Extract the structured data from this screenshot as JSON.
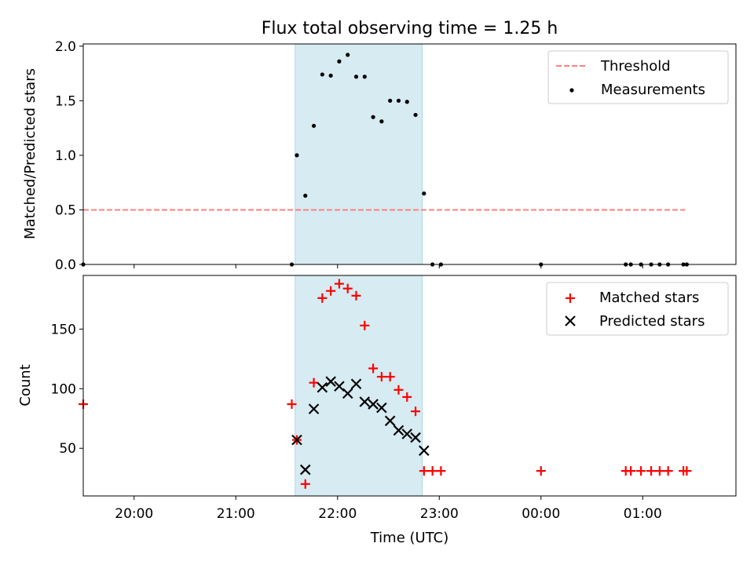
{
  "chart_data": [
    {
      "type": "scatter",
      "title": "Flux total observing time = 1.25 h",
      "ylabel": "Matched/Predicted stars",
      "xlabel": "",
      "xlim": [
        "19:30",
        "01:55"
      ],
      "ylim": [
        0,
        2.02
      ],
      "y_ticks": [
        0.0,
        0.5,
        1.0,
        1.5,
        2.0
      ],
      "y_tick_labels": [
        "0.0",
        "0.5",
        "1.0",
        "1.5",
        "2.0"
      ],
      "grid": false,
      "legend_position": "upper right",
      "shaded_interval": {
        "start": "21:35",
        "end": "22:50",
        "color": "#add8e6"
      },
      "threshold": {
        "name": "Threshold",
        "value": 0.5,
        "x_start": "19:30",
        "x_end": "01:25",
        "color": "#ff8080"
      },
      "series": [
        {
          "name": "Measurements",
          "color": "#000000",
          "points": [
            [
              "19:30",
              0.0
            ],
            [
              "21:33",
              0.0
            ],
            [
              "21:36",
              1.0
            ],
            [
              "21:41",
              0.63
            ],
            [
              "21:46",
              1.27
            ],
            [
              "21:51",
              1.74
            ],
            [
              "21:56",
              1.73
            ],
            [
              "22:01",
              1.86
            ],
            [
              "22:06",
              1.92
            ],
            [
              "22:11",
              1.72
            ],
            [
              "22:16",
              1.72
            ],
            [
              "22:21",
              1.35
            ],
            [
              "22:26",
              1.31
            ],
            [
              "22:31",
              1.5
            ],
            [
              "22:36",
              1.5
            ],
            [
              "22:41",
              1.49
            ],
            [
              "22:46",
              1.37
            ],
            [
              "22:51",
              0.65
            ],
            [
              "22:56",
              0.0
            ],
            [
              "23:01",
              0.0
            ],
            [
              "00:00",
              0.0
            ],
            [
              "00:50",
              0.0
            ],
            [
              "00:53",
              0.0
            ],
            [
              "00:59",
              0.0
            ],
            [
              "01:05",
              0.0
            ],
            [
              "01:10",
              0.0
            ],
            [
              "01:15",
              0.0
            ],
            [
              "01:24",
              0.0
            ],
            [
              "01:26",
              0.0
            ]
          ]
        }
      ]
    },
    {
      "type": "scatter",
      "title": "",
      "ylabel": "Count",
      "xlabel": "Time (UTC)",
      "xlim": [
        "19:30",
        "01:55"
      ],
      "ylim": [
        10,
        195
      ],
      "y_ticks": [
        50,
        100,
        150
      ],
      "y_tick_labels": [
        "50",
        "100",
        "150"
      ],
      "x_ticks": [
        "20:00",
        "21:00",
        "22:00",
        "23:00",
        "00:00",
        "01:00"
      ],
      "x_tick_labels": [
        "20:00",
        "21:00",
        "22:00",
        "23:00",
        "00:00",
        "01:00"
      ],
      "grid": false,
      "legend_position": "upper right",
      "shaded_interval": {
        "start": "21:35",
        "end": "22:50",
        "color": "#add8e6"
      },
      "series": [
        {
          "name": "Matched stars",
          "color": "#ff0000",
          "marker": "plus",
          "points": [
            [
              "19:30",
              87
            ],
            [
              "21:33",
              87
            ],
            [
              "21:36",
              57
            ],
            [
              "21:41",
              20
            ],
            [
              "21:46",
              105
            ],
            [
              "21:51",
              176
            ],
            [
              "21:56",
              182
            ],
            [
              "22:01",
              188
            ],
            [
              "22:06",
              184
            ],
            [
              "22:11",
              178
            ],
            [
              "22:16",
              153
            ],
            [
              "22:21",
              117
            ],
            [
              "22:26",
              110
            ],
            [
              "22:31",
              110
            ],
            [
              "22:36",
              99
            ],
            [
              "22:41",
              93
            ],
            [
              "22:46",
              81
            ],
            [
              "22:51",
              31
            ],
            [
              "22:56",
              31
            ],
            [
              "23:01",
              31
            ],
            [
              "00:00",
              31
            ],
            [
              "00:50",
              31
            ],
            [
              "00:53",
              31
            ],
            [
              "00:59",
              31
            ],
            [
              "01:05",
              31
            ],
            [
              "01:10",
              31
            ],
            [
              "01:15",
              31
            ],
            [
              "01:24",
              31
            ],
            [
              "01:26",
              31
            ]
          ]
        },
        {
          "name": "Predicted stars",
          "color": "#000000",
          "marker": "x",
          "points": [
            [
              "21:36",
              57
            ],
            [
              "21:41",
              32
            ],
            [
              "21:46",
              83
            ],
            [
              "21:51",
              101
            ],
            [
              "21:56",
              106
            ],
            [
              "22:01",
              102
            ],
            [
              "22:06",
              96
            ],
            [
              "22:11",
              104
            ],
            [
              "22:16",
              89
            ],
            [
              "22:21",
              87
            ],
            [
              "22:26",
              84
            ],
            [
              "22:31",
              73
            ],
            [
              "22:36",
              65
            ],
            [
              "22:41",
              62
            ],
            [
              "22:46",
              59
            ],
            [
              "22:51",
              48
            ]
          ]
        }
      ]
    }
  ]
}
